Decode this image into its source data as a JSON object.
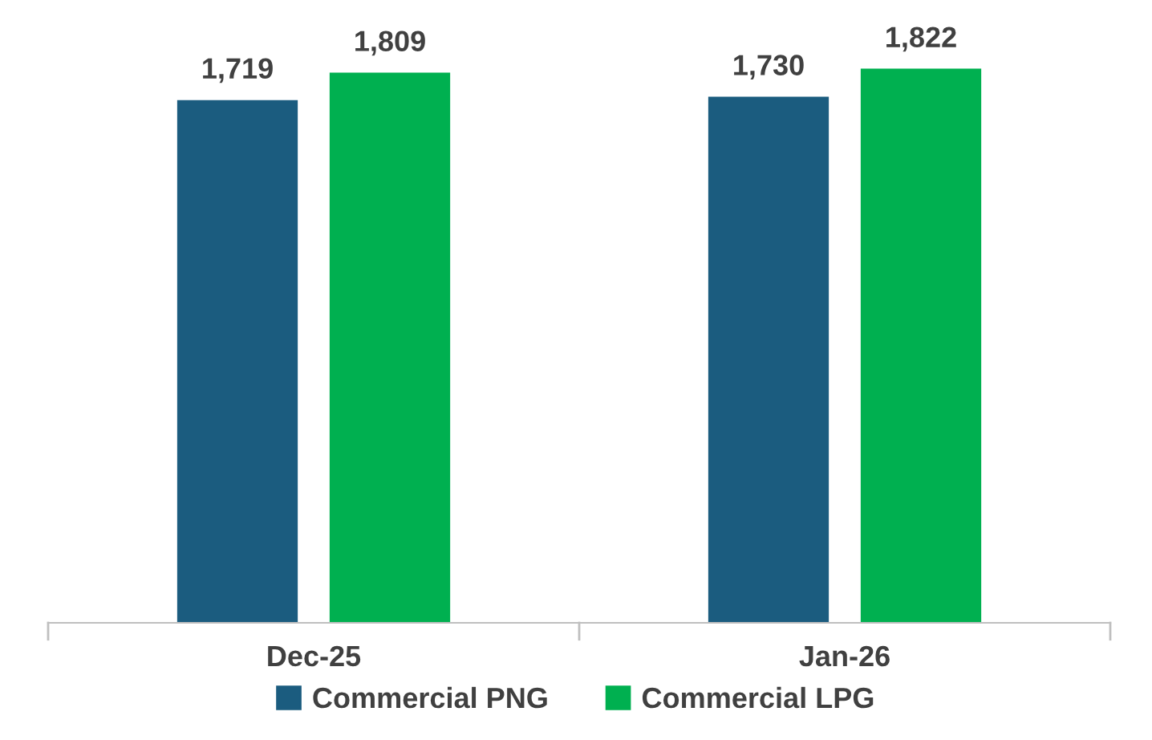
{
  "chart_data": {
    "type": "bar",
    "categories": [
      "Dec-25",
      "Jan-26"
    ],
    "series": [
      {
        "name": "Commercial PNG",
        "color": "#1b5c7f",
        "values": [
          1719,
          1730
        ],
        "value_labels": [
          "1,719",
          "1,730"
        ]
      },
      {
        "name": "Commercial LPG",
        "color": "#00b050",
        "values": [
          1809,
          1822
        ],
        "value_labels": [
          "1,809",
          "1,822"
        ]
      }
    ],
    "grid": false,
    "legend": "bottom"
  }
}
